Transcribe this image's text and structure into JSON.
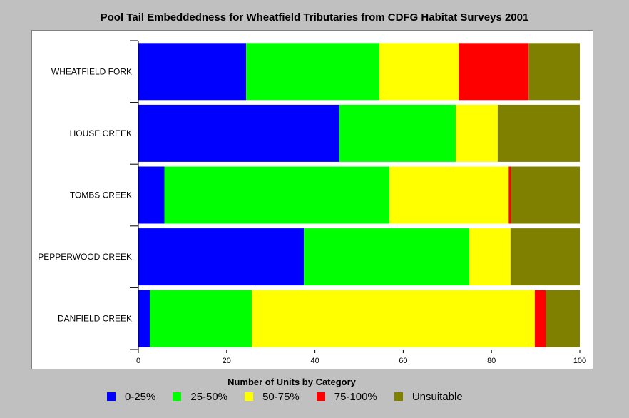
{
  "chart_data": {
    "type": "bar",
    "orientation": "horizontal",
    "stacked": true,
    "title": "Pool Tail Embeddedness for Wheatfield Tributaries from CDFG Habitat Surveys 2001",
    "legend_title": "Number of Units by Category",
    "legend_position": "bottom",
    "grid": false,
    "categories": [
      "WHEATFIELD FORK",
      "HOUSE CREEK",
      "TOMBS CREEK",
      "PEPPERWOOD CREEK",
      "DANFIELD CREEK"
    ],
    "series": [
      {
        "name": "0-25%",
        "color": "#0000ff",
        "values": [
          24.4,
          45.5,
          5.9,
          37.5,
          2.6
        ]
      },
      {
        "name": "25-50%",
        "color": "#00ff00",
        "values": [
          30.2,
          26.4,
          51.0,
          37.5,
          23.1
        ]
      },
      {
        "name": "50-75%",
        "color": "#ffff00",
        "values": [
          18.0,
          9.5,
          27.0,
          9.3,
          64.1
        ]
      },
      {
        "name": "75-100%",
        "color": "#ff0000",
        "values": [
          15.8,
          0,
          0.5,
          0,
          2.5
        ]
      },
      {
        "name": "Unsuitable",
        "color": "#808000",
        "values": [
          11.6,
          18.6,
          15.6,
          15.7,
          7.7
        ]
      }
    ],
    "xlim": [
      0,
      100
    ],
    "xticks": [
      "0",
      "20",
      "40",
      "60",
      "80",
      "100"
    ]
  }
}
